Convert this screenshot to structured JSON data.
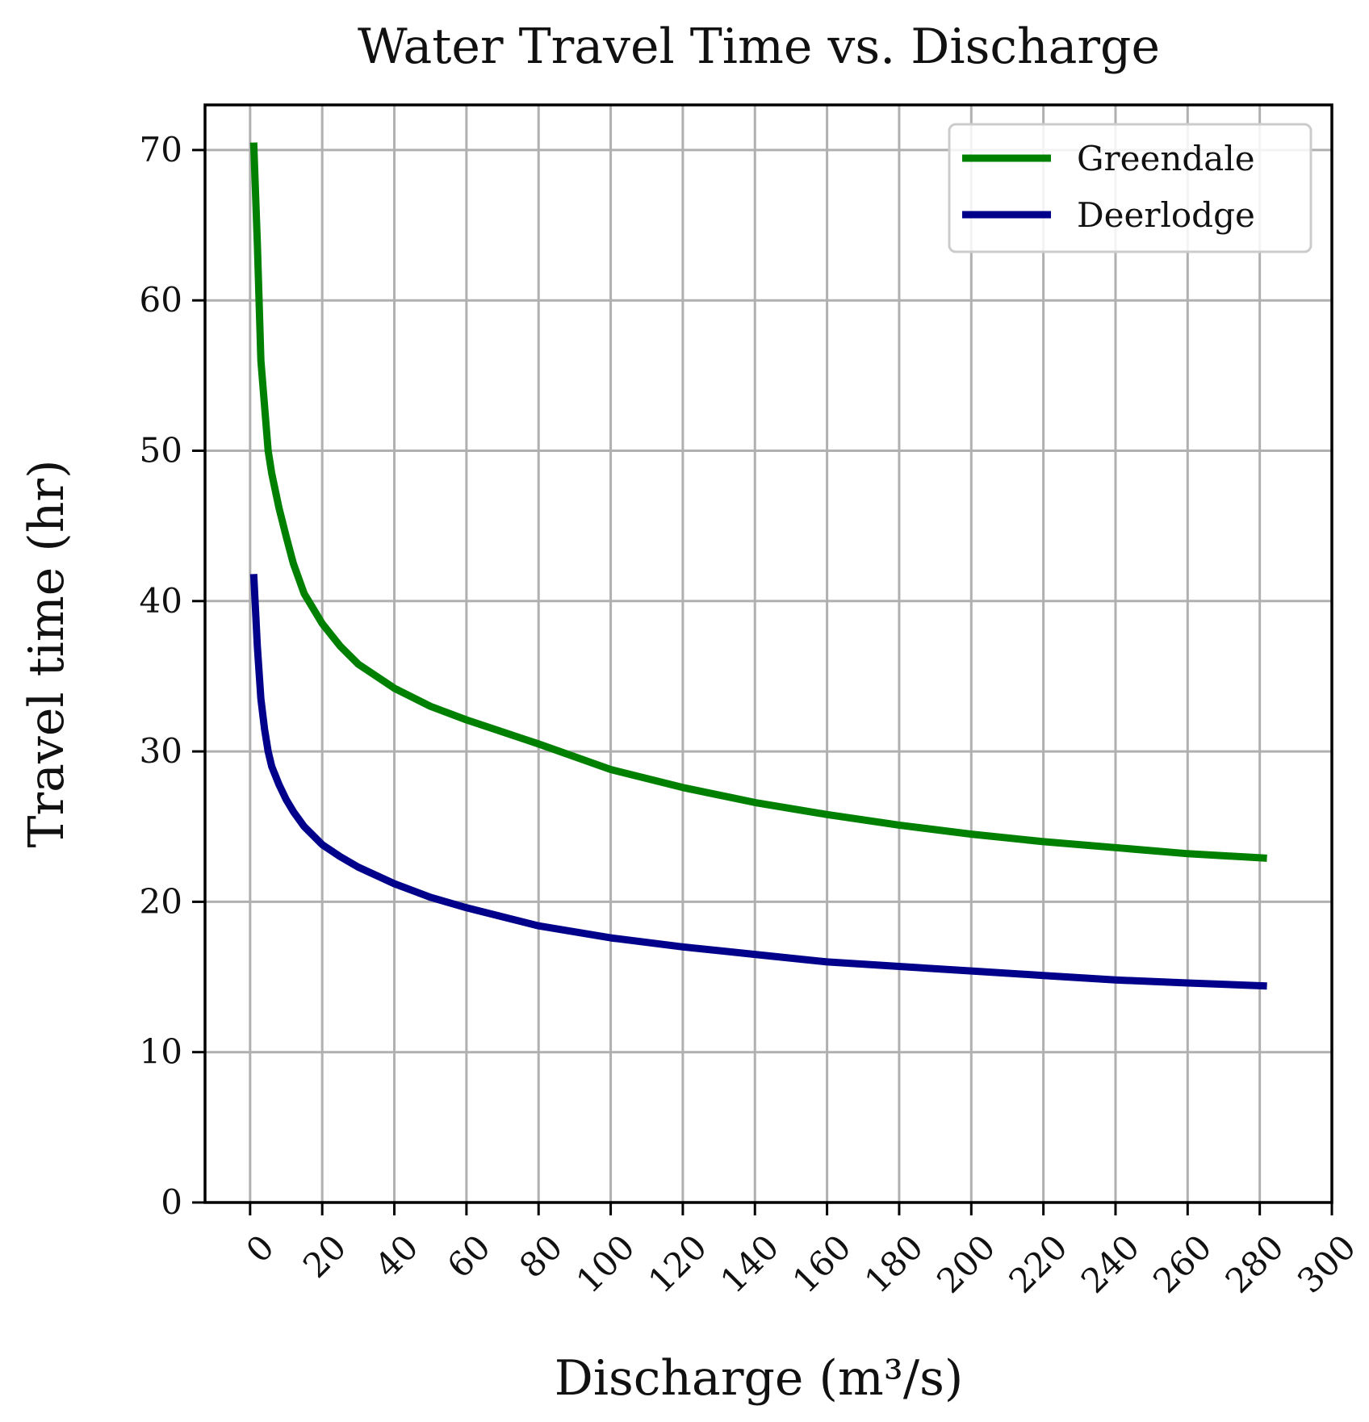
{
  "chart_data": {
    "type": "line",
    "title": "Water Travel Time vs. Discharge",
    "xlabel": "Discharge (m³/s)",
    "ylabel": "Travel time (hr)",
    "xlim": [
      -12.5,
      300
    ],
    "ylim": [
      0,
      73
    ],
    "x_ticks": [
      0,
      20,
      40,
      60,
      80,
      100,
      120,
      140,
      160,
      180,
      200,
      220,
      240,
      260,
      280,
      300
    ],
    "y_ticks": [
      0,
      10,
      20,
      30,
      40,
      50,
      60,
      70
    ],
    "grid": true,
    "legend_position": "upper-right",
    "series": [
      {
        "name": "Greendale",
        "color": "#008000",
        "x": [
          1,
          2,
          3,
          4,
          5,
          6,
          8,
          10,
          12,
          15,
          20,
          25,
          30,
          40,
          50,
          60,
          70,
          80,
          100,
          120,
          140,
          160,
          180,
          200,
          220,
          240,
          260,
          282
        ],
        "y": [
          70.5,
          63.8,
          56,
          53,
          50,
          48.5,
          46.2,
          44.3,
          42.5,
          40.5,
          38.5,
          37,
          35.8,
          34.2,
          33,
          32.1,
          31.3,
          30.5,
          28.8,
          27.6,
          26.6,
          25.8,
          25.1,
          24.5,
          24,
          23.6,
          23.2,
          22.9
        ]
      },
      {
        "name": "Deerlodge",
        "color": "#00008b",
        "x": [
          1,
          2,
          3,
          4,
          5,
          6,
          8,
          10,
          12,
          15,
          20,
          25,
          30,
          40,
          50,
          60,
          70,
          80,
          100,
          120,
          140,
          160,
          180,
          200,
          220,
          240,
          260,
          282
        ],
        "y": [
          41.8,
          37,
          33.5,
          31.5,
          30,
          29,
          27.8,
          26.8,
          26,
          25,
          23.8,
          23,
          22.3,
          21.2,
          20.3,
          19.6,
          19,
          18.4,
          17.6,
          17,
          16.5,
          16,
          15.7,
          15.4,
          15.1,
          14.8,
          14.6,
          14.4
        ]
      }
    ]
  }
}
